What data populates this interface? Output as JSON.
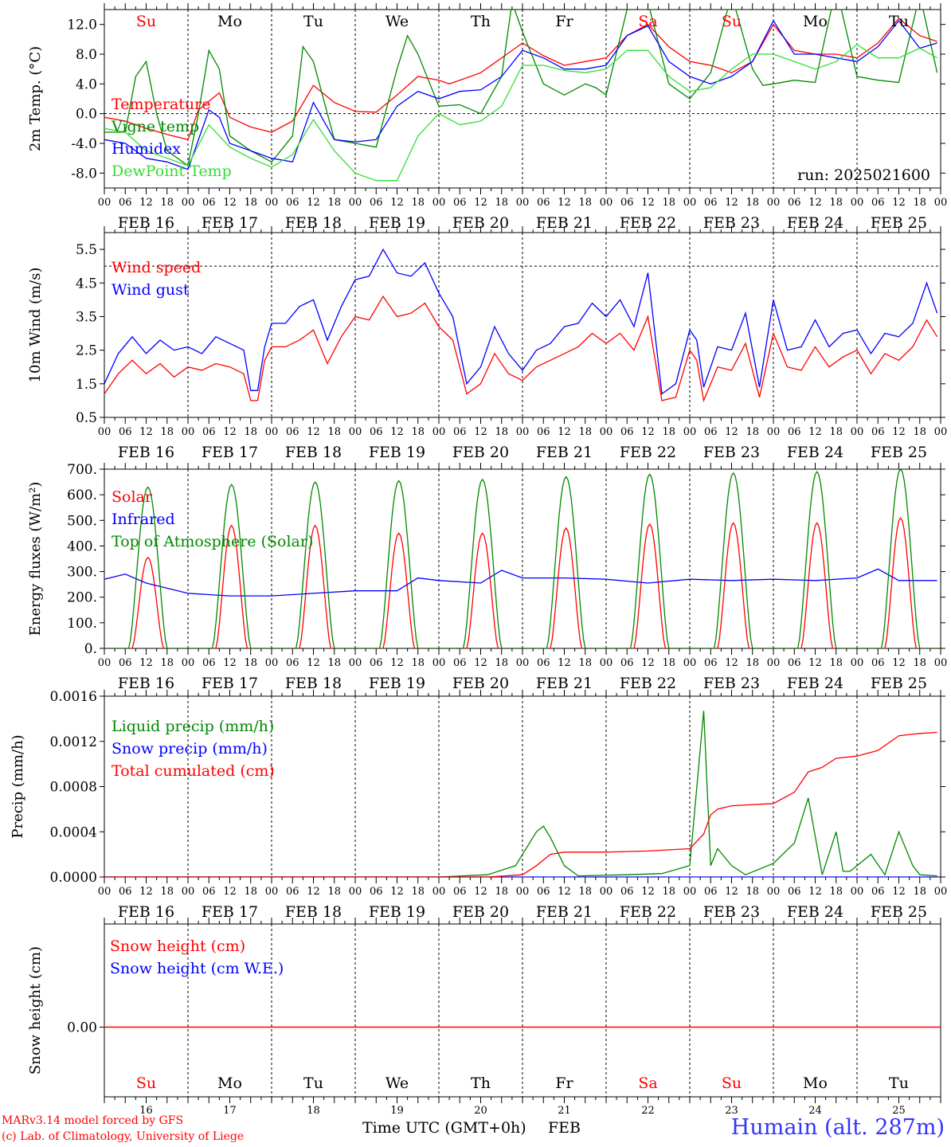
{
  "run_label": "run: 2025021600",
  "day_names": [
    "Su",
    "Mo",
    "Tu",
    "We",
    "Th",
    "Fr",
    "Sa",
    "Su",
    "Mo",
    "Tu"
  ],
  "day_name_colors": [
    "#ff0000",
    "#000000",
    "#000000",
    "#000000",
    "#000000",
    "#000000",
    "#ff0000",
    "#ff0000",
    "#000000",
    "#000000"
  ],
  "day_numbers": [
    "16",
    "17",
    "18",
    "19",
    "20",
    "21",
    "22",
    "23",
    "24",
    "25"
  ],
  "date_labels": [
    "FEB 16",
    "FEB 17",
    "FEB 18",
    "FEB 19",
    "FEB 20",
    "FEB 21",
    "FEB 22",
    "FEB 23",
    "FEB 24",
    "FEB 25"
  ],
  "hour_ticks": [
    "00",
    "06",
    "12",
    "18"
  ],
  "footer": {
    "credit_line1": "MARv3.14 model forced by GFS",
    "credit_line2": "(c) Lab. of Climatology, University of Liege",
    "xaxis_title": "Time UTC (GMT+0h)",
    "xaxis_month": "FEB",
    "station": "Humain (alt. 287m)"
  },
  "colors": {
    "red": "#ff0000",
    "dark_green": "#008800",
    "blue": "#0000ff",
    "light_green": "#33dd33"
  },
  "chart_data": [
    {
      "type": "line",
      "ylabel": "2m Temp. (°C)",
      "ylim": [
        -10,
        14
      ],
      "yticks": [
        "12.0",
        "8.0",
        "4.0",
        "0.0",
        "-4.0",
        "-8.0"
      ],
      "ytick_values": [
        12,
        8,
        4,
        0,
        -4,
        -8
      ],
      "dashed_ref": 0,
      "x_unit": "hours since FEB 16 00 UTC",
      "series": [
        {
          "name": "Temperature",
          "color": "#ff0000",
          "x": [
            0,
            6,
            12,
            18,
            24,
            27,
            33,
            36,
            42,
            48,
            54,
            60,
            66,
            72,
            78,
            84,
            90,
            96,
            99,
            102,
            108,
            114,
            120,
            126,
            132,
            138,
            144,
            150,
            156,
            162,
            168,
            174,
            180,
            186,
            192,
            198,
            204,
            210,
            216,
            222,
            228,
            234,
            239
          ],
          "values": [
            -0.5,
            -1,
            -2,
            -2.8,
            -3.5,
            0.5,
            2.8,
            -0.5,
            -1.8,
            -2.5,
            -1,
            3.8,
            1.5,
            0.3,
            0.2,
            2.5,
            5,
            4.5,
            4,
            4.5,
            5.5,
            7.5,
            9.5,
            7.8,
            6.5,
            7,
            7.5,
            10.5,
            12,
            9,
            7,
            6.5,
            5.5,
            7,
            12,
            8.5,
            8,
            8,
            7.5,
            9.5,
            12.8,
            10.5,
            9.7
          ]
        },
        {
          "name": "Vigne temp",
          "color": "#008800",
          "x": [
            0,
            6,
            9,
            12,
            15,
            18,
            24,
            27,
            30,
            33,
            36,
            42,
            48,
            54,
            57,
            60,
            66,
            72,
            78,
            84,
            87,
            90,
            96,
            102,
            108,
            114,
            117,
            120,
            126,
            132,
            138,
            141,
            144,
            150,
            156,
            162,
            165,
            168,
            174,
            180,
            186,
            189,
            192,
            198,
            204,
            210,
            216,
            222,
            228,
            234,
            239
          ],
          "values": [
            -2.5,
            -2.5,
            5,
            7,
            0,
            -5,
            -7,
            0,
            8.5,
            6,
            -3,
            -5,
            -6.5,
            -3,
            9,
            7,
            -3.5,
            -4,
            -4.5,
            6,
            10.5,
            8,
            1,
            1.2,
            0,
            5,
            15,
            11,
            4,
            2.5,
            4,
            3.5,
            2.5,
            14,
            15,
            4,
            3,
            2,
            5.5,
            16,
            6,
            3.8,
            4,
            4.5,
            4.2,
            17,
            5,
            4.5,
            4.2,
            16,
            5.5
          ]
        },
        {
          "name": "Humidex",
          "color": "#0000ff",
          "x": [
            0,
            6,
            12,
            18,
            24,
            30,
            33,
            36,
            42,
            48,
            54,
            60,
            66,
            72,
            78,
            84,
            90,
            96,
            102,
            108,
            114,
            120,
            126,
            132,
            138,
            144,
            150,
            156,
            162,
            168,
            174,
            180,
            186,
            192,
            198,
            204,
            210,
            216,
            222,
            228,
            234,
            239
          ],
          "values": [
            -3.5,
            -4,
            -6,
            -6.5,
            -7.5,
            0.5,
            -0.5,
            -4,
            -5,
            -6,
            -6.5,
            1.5,
            -3.5,
            -3.8,
            -3.5,
            1,
            3,
            2,
            3,
            3.2,
            5,
            8.5,
            7.5,
            6,
            6,
            6.5,
            10.5,
            11.8,
            7,
            5,
            4,
            5,
            7,
            12.5,
            8,
            8,
            7.5,
            7,
            9,
            12.5,
            8.8,
            9.5
          ]
        },
        {
          "name": "DewPoint Temp",
          "color": "#33dd33",
          "x": [
            0,
            6,
            12,
            18,
            24,
            30,
            36,
            42,
            48,
            54,
            60,
            66,
            72,
            78,
            84,
            90,
            96,
            102,
            108,
            114,
            120,
            126,
            132,
            138,
            144,
            150,
            156,
            162,
            168,
            174,
            180,
            186,
            192,
            198,
            204,
            210,
            216,
            222,
            228,
            234,
            239
          ],
          "values": [
            -2,
            -2.5,
            -5,
            -6,
            -7,
            -1.5,
            -4.5,
            -6,
            -7.2,
            -5.5,
            -0.8,
            -5,
            -8,
            -9,
            -9,
            -3,
            0,
            -1.5,
            -1,
            1,
            6.5,
            6.5,
            5.8,
            5.5,
            6,
            8.5,
            8.5,
            5,
            3,
            3.5,
            6,
            8,
            8,
            7,
            6,
            7,
            9.3,
            7.5,
            7.5,
            8.8,
            7.5
          ]
        }
      ]
    },
    {
      "type": "line",
      "ylabel": "10m Wind (m/s)",
      "ylim": [
        0.5,
        6
      ],
      "yticks": [
        "5.5",
        "4.5",
        "3.5",
        "2.5",
        "1.5",
        "0.5"
      ],
      "ytick_values": [
        5.5,
        4.5,
        3.5,
        2.5,
        1.5,
        0.5
      ],
      "dashed_ref": 5,
      "x_unit": "hours since FEB 16 00 UTC",
      "series": [
        {
          "name": "Wind speed",
          "color": "#ff0000",
          "x": [
            0,
            4,
            8,
            12,
            16,
            20,
            24,
            28,
            32,
            36,
            40,
            42,
            44,
            46,
            48,
            52,
            56,
            60,
            64,
            68,
            72,
            76,
            80,
            84,
            88,
            92,
            96,
            100,
            104,
            108,
            112,
            116,
            120,
            124,
            128,
            132,
            136,
            140,
            144,
            148,
            152,
            156,
            160,
            164,
            168,
            170,
            172,
            176,
            180,
            184,
            188,
            192,
            196,
            200,
            204,
            208,
            212,
            216,
            220,
            224,
            228,
            232,
            236,
            239
          ],
          "values": [
            1.2,
            1.8,
            2.2,
            1.8,
            2.1,
            1.7,
            2,
            1.9,
            2.1,
            2,
            1.8,
            1,
            1,
            2.2,
            2.6,
            2.6,
            2.8,
            3.1,
            2.1,
            2.9,
            3.5,
            3.4,
            4.1,
            3.5,
            3.6,
            3.9,
            3.2,
            2.8,
            1.2,
            1.5,
            2.4,
            1.8,
            1.6,
            2,
            2.2,
            2.4,
            2.6,
            3,
            2.7,
            3,
            2.5,
            3.5,
            1,
            1.1,
            2.5,
            2.2,
            1,
            2,
            1.9,
            2.7,
            1.1,
            3,
            2,
            1.9,
            2.6,
            2,
            2.3,
            2.5,
            1.8,
            2.4,
            2.2,
            2.6,
            3.4,
            2.9
          ]
        },
        {
          "name": "Wind gust",
          "color": "#0000ff",
          "x": [
            0,
            4,
            8,
            12,
            16,
            20,
            24,
            28,
            32,
            36,
            40,
            42,
            44,
            46,
            48,
            52,
            56,
            60,
            64,
            68,
            72,
            76,
            80,
            84,
            88,
            92,
            96,
            100,
            104,
            108,
            112,
            116,
            120,
            124,
            128,
            132,
            136,
            140,
            144,
            148,
            152,
            156,
            160,
            164,
            168,
            170,
            172,
            176,
            180,
            184,
            188,
            192,
            196,
            200,
            204,
            208,
            212,
            216,
            220,
            224,
            228,
            232,
            236,
            239
          ],
          "values": [
            1.5,
            2.4,
            2.9,
            2.4,
            2.8,
            2.5,
            2.6,
            2.4,
            2.9,
            2.7,
            2.5,
            1.3,
            1.3,
            2.6,
            3.3,
            3.3,
            3.8,
            4,
            2.8,
            3.8,
            4.6,
            4.7,
            5.5,
            4.8,
            4.7,
            5.1,
            4.2,
            3.5,
            1.5,
            2,
            3.2,
            2.4,
            1.9,
            2.5,
            2.7,
            3.2,
            3.3,
            3.9,
            3.5,
            4,
            3.2,
            4.8,
            1.2,
            1.5,
            3.1,
            2.8,
            1.4,
            2.6,
            2.5,
            3.6,
            1.4,
            4,
            2.5,
            2.6,
            3.4,
            2.6,
            3,
            3.1,
            2.4,
            3,
            2.9,
            3.3,
            4.5,
            3.6
          ]
        }
      ]
    },
    {
      "type": "line",
      "ylabel": "Energy fluxes (W/m²)",
      "ylim": [
        0,
        700
      ],
      "yticks": [
        "700.",
        "600.",
        "500.",
        "400.",
        "300.",
        "200.",
        "100.",
        "0."
      ],
      "ytick_values": [
        700,
        600,
        500,
        400,
        300,
        200,
        100,
        0
      ],
      "x_unit": "hours since FEB 16 00 UTC",
      "series": [
        {
          "name": "Solar",
          "color": "#ff0000",
          "diurnal_peaks": [
            355,
            480,
            480,
            450,
            450,
            470,
            485,
            490,
            490,
            510
          ]
        },
        {
          "name": "Infrared",
          "color": "#0000ff",
          "x": [
            0,
            6,
            12,
            24,
            36,
            48,
            60,
            72,
            84,
            90,
            96,
            108,
            114,
            120,
            132,
            144,
            156,
            168,
            180,
            192,
            204,
            216,
            222,
            228,
            239
          ],
          "values": [
            270,
            290,
            255,
            215,
            205,
            205,
            215,
            225,
            225,
            275,
            265,
            255,
            305,
            275,
            275,
            270,
            255,
            270,
            265,
            270,
            265,
            275,
            310,
            265,
            265
          ]
        },
        {
          "name": "Top of Atmosphere (Solar)",
          "color": "#008800",
          "diurnal_peaks": [
            630,
            640,
            650,
            655,
            660,
            670,
            680,
            685,
            690,
            700
          ]
        }
      ]
    },
    {
      "type": "line",
      "ylabel": "Precip (mm/h)",
      "ylim": [
        0,
        0.0016
      ],
      "yticks": [
        "0.0016",
        "0.0012",
        "0.0008",
        "0.0004",
        "0.0000"
      ],
      "ytick_values": [
        0.0016,
        0.0012,
        0.0008,
        0.0004,
        0
      ],
      "x_unit": "hours since FEB 16 00 UTC",
      "series": [
        {
          "name": "Liquid precip (mm/h)",
          "color": "#008800",
          "x": [
            0,
            96,
            110,
            118,
            124,
            126,
            128,
            132,
            136,
            150,
            160,
            168,
            172,
            174,
            176,
            180,
            184,
            192,
            198,
            202,
            206,
            210,
            212,
            214,
            220,
            224,
            228,
            232,
            234,
            239
          ],
          "values": [
            0,
            0,
            2e-05,
            0.0001,
            0.0004,
            0.00045,
            0.00035,
            0.0001,
            1e-05,
            2e-05,
            3e-05,
            0.0001,
            0.00147,
            0.0001,
            0.00025,
            0.0001,
            2e-05,
            0.00012,
            0.0003,
            0.0007,
            2e-05,
            0.0004,
            5e-05,
            5e-05,
            0.0002,
            2e-05,
            0.0004,
            0.0001,
            2e-05,
            1e-05
          ]
        },
        {
          "name": "Snow precip (mm/h)",
          "color": "#0000ff",
          "x": [
            0,
            239
          ],
          "values": [
            0,
            0
          ]
        },
        {
          "name": "Total cumulated (cm)",
          "color": "#ff0000",
          "x": [
            0,
            110,
            120,
            124,
            128,
            132,
            144,
            156,
            168,
            172,
            174,
            176,
            180,
            192,
            198,
            202,
            206,
            210,
            216,
            222,
            228,
            234,
            239
          ],
          "values": [
            0,
            0,
            2e-05,
            0.0001,
            0.0002,
            0.00022,
            0.00022,
            0.00023,
            0.00025,
            0.00038,
            0.00055,
            0.0006,
            0.00063,
            0.00065,
            0.00075,
            0.00093,
            0.00097,
            0.00105,
            0.00107,
            0.00112,
            0.00125,
            0.00127,
            0.00128
          ]
        }
      ]
    },
    {
      "type": "line",
      "ylabel": "Snow height (cm)",
      "yticks": [
        "0.00"
      ],
      "x_unit": "hours since FEB 16 00 UTC",
      "series": [
        {
          "name": "Snow height (cm)",
          "color": "#ff0000",
          "x": [
            0,
            239
          ],
          "values": [
            0,
            0
          ]
        },
        {
          "name": "Snow height (cm W.E.)",
          "color": "#0000ff",
          "x": [
            0,
            239
          ],
          "values": [
            0,
            0
          ]
        }
      ]
    }
  ]
}
